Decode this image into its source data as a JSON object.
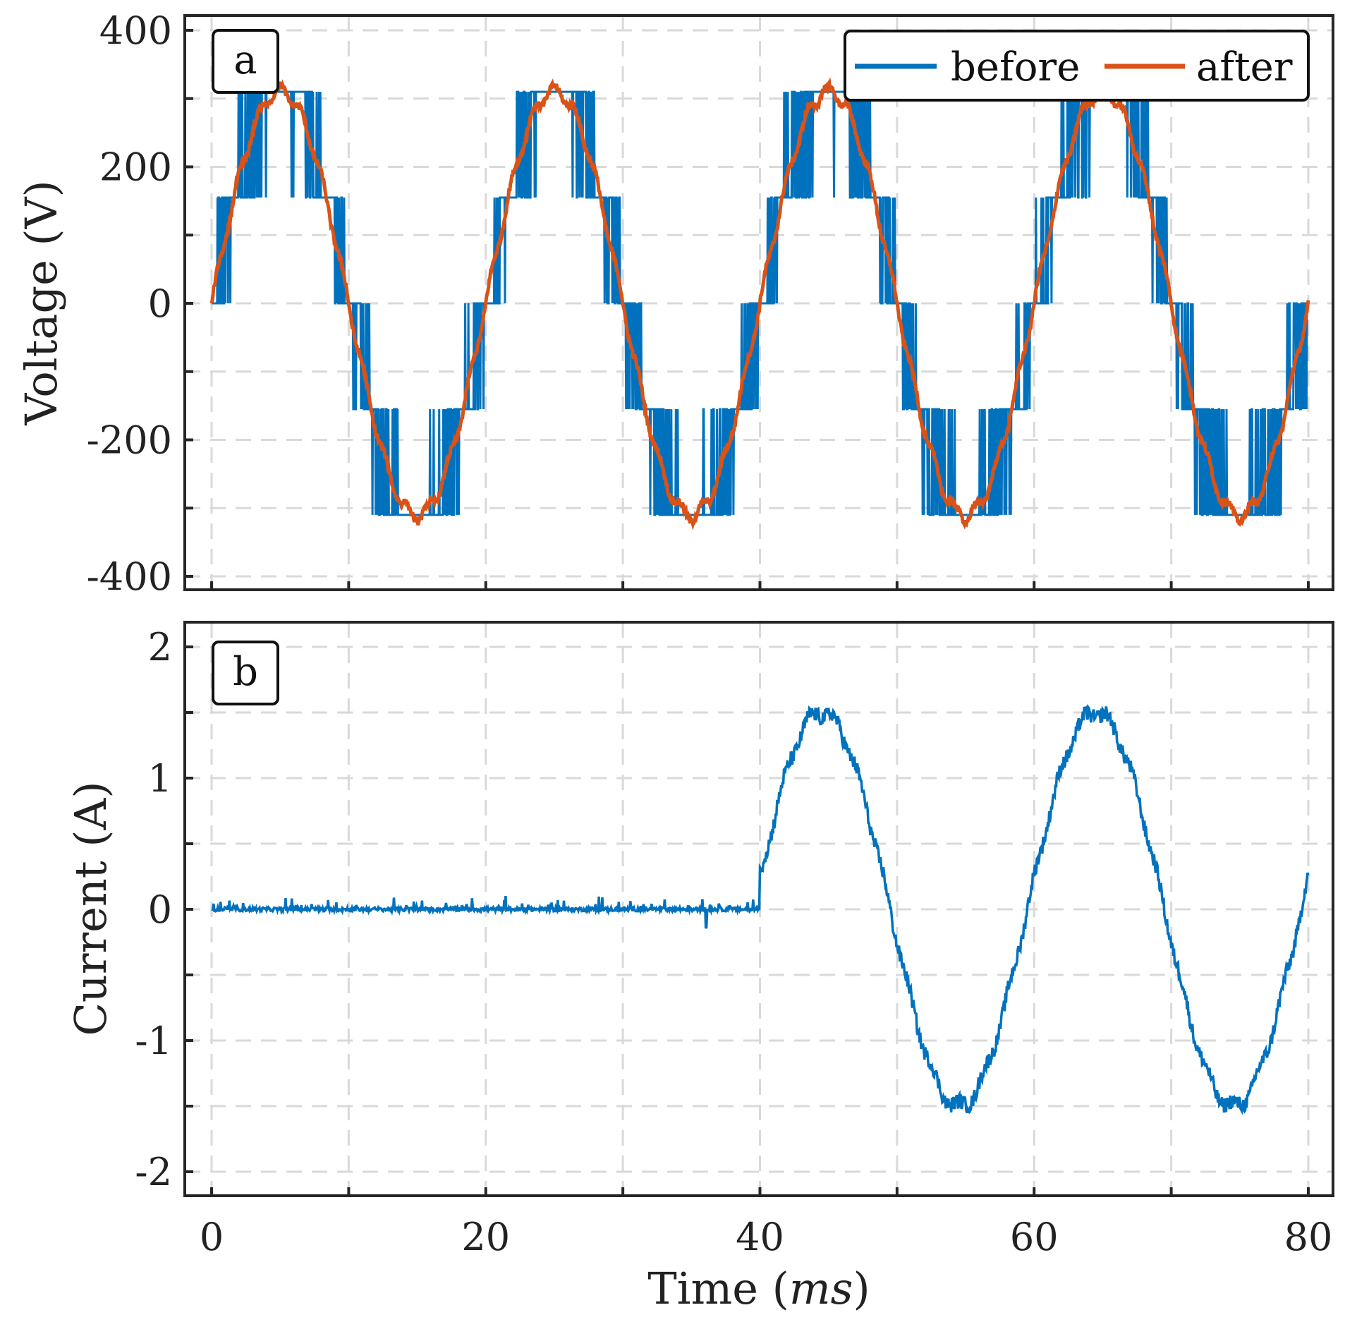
{
  "colors": {
    "before": "#0072BD",
    "after": "#D95319",
    "axis": "#262626",
    "grid": "#d9d9d9"
  },
  "chart_data": [
    {
      "type": "line",
      "panel_label": "a",
      "ylabel": "Voltage (V)",
      "xlim": [
        0,
        80
      ],
      "ylim": [
        -410,
        410
      ],
      "yticks": [
        400,
        200,
        0,
        -200,
        -400
      ],
      "ytick_labels": [
        "400",
        "200",
        "0",
        "-200",
        "-400"
      ],
      "grid": true,
      "legend": {
        "placement": "top-right",
        "entries": [
          "before",
          "after"
        ]
      },
      "series": [
        {
          "name": "before",
          "description": "5-level PWM switching waveform, 50 Hz, levels 0, ±155, ±311 V",
          "frequency_hz": 50,
          "levels": [
            -311,
            -155,
            0,
            155,
            311
          ],
          "switching_points_per_period": 60
        },
        {
          "name": "after",
          "description": "filtered sinusoid with small ripple",
          "frequency_hz": 50,
          "amplitude": 311,
          "x": [
            0,
            5,
            10,
            15,
            20,
            25,
            30,
            35,
            40,
            45,
            50,
            55,
            60,
            65,
            70,
            75,
            80
          ],
          "y": [
            0,
            311,
            0,
            -311,
            0,
            311,
            0,
            -311,
            0,
            311,
            0,
            -311,
            0,
            311,
            0,
            -311,
            0
          ]
        }
      ]
    },
    {
      "type": "line",
      "panel_label": "b",
      "ylabel": "Current (A)",
      "xlabel_prefix": "Time (",
      "xlabel_unit": "ms",
      "xlabel_suffix": ")",
      "xlim": [
        0,
        80
      ],
      "ylim": [
        -2.2,
        2.2
      ],
      "yticks": [
        2,
        1,
        0,
        -1,
        -2
      ],
      "ytick_labels": [
        "2",
        "1",
        "0",
        "-1",
        "-2"
      ],
      "xticks": [
        0,
        20,
        40,
        60,
        80
      ],
      "xtick_labels": [
        "0",
        "20",
        "40",
        "60",
        "80"
      ],
      "grid": true,
      "series": [
        {
          "name": "current",
          "description": "near zero until 40 ms, then 50 Hz sinusoid, amplitude about 1.5 A",
          "x": [
            0,
            10,
            20,
            30,
            40,
            44.5,
            49.5,
            54.5,
            59.5,
            64.5,
            69.5,
            74.5,
            80
          ],
          "y": [
            0,
            0,
            0,
            0,
            0,
            1.5,
            0,
            -1.5,
            0,
            1.5,
            0,
            -1.5,
            0.25
          ]
        }
      ]
    }
  ]
}
